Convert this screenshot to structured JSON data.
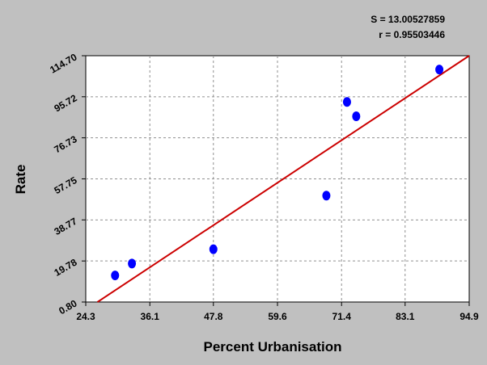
{
  "chart_data": {
    "type": "scatter",
    "xlabel": "Percent Urbanisation",
    "ylabel": "Rate",
    "xlim": [
      24.3,
      94.9
    ],
    "ylim": [
      0.8,
      114.7
    ],
    "x_ticks": [
      "24.3",
      "36.1",
      "47.8",
      "59.6",
      "71.4",
      "83.1",
      "94.9"
    ],
    "y_ticks": [
      "0.80",
      "19.78",
      "38.77",
      "57.75",
      "76.73",
      "95.72",
      "114.70"
    ],
    "grid": true,
    "points": [
      {
        "x": 29.7,
        "y": 13.1
      },
      {
        "x": 32.8,
        "y": 18.6
      },
      {
        "x": 47.8,
        "y": 25.2
      },
      {
        "x": 68.6,
        "y": 50.0
      },
      {
        "x": 72.4,
        "y": 93.3
      },
      {
        "x": 74.1,
        "y": 86.7
      },
      {
        "x": 89.4,
        "y": 108.3
      }
    ],
    "fit_line": {
      "x": [
        24.3,
        94.9
      ],
      "y": [
        -2.8,
        114.7
      ]
    },
    "stats": {
      "s_text": "S = 13.00527859",
      "r_text": "r = 0.95503446"
    },
    "colors": {
      "background": "#c0c0c0",
      "plot_area": "#ffffff",
      "points": "#0000ff",
      "fit_line": "#cc0000",
      "grid": "#909090"
    }
  }
}
